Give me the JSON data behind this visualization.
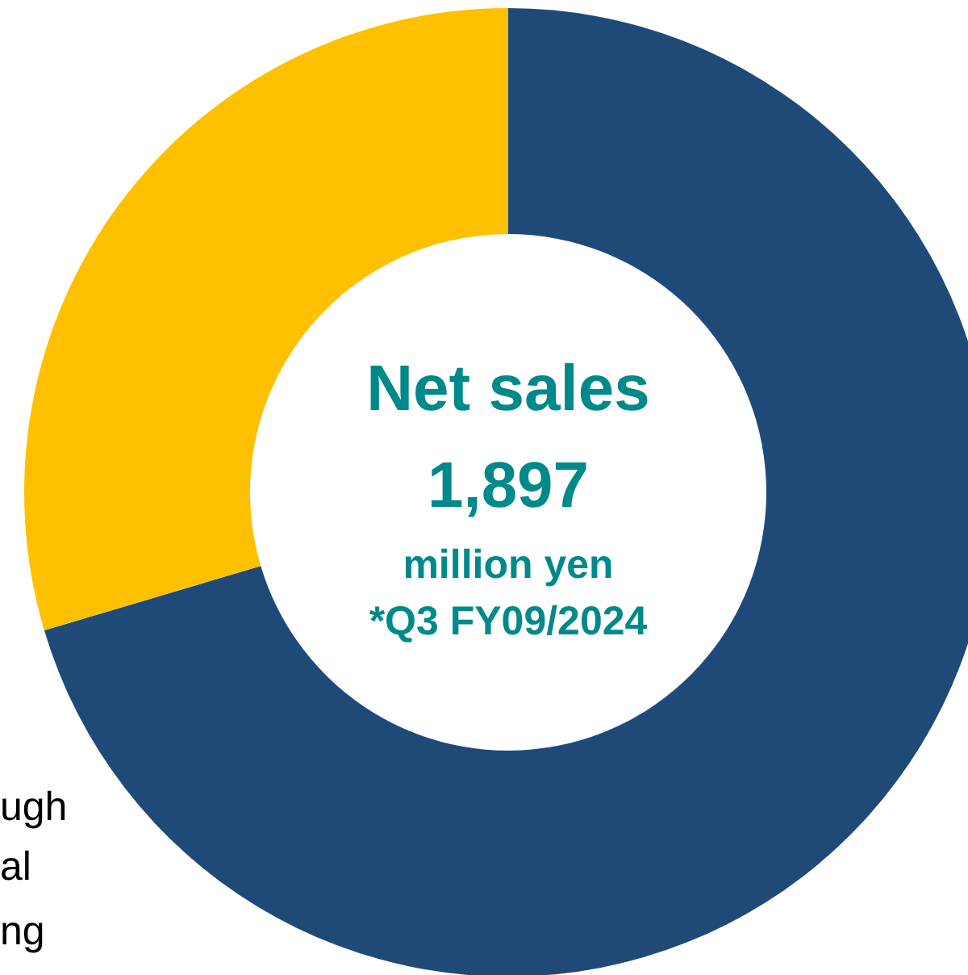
{
  "chart_data": {
    "type": "donut",
    "categories": [
      null,
      null
    ],
    "values": [
      70.4,
      29.6
    ],
    "colors": [
      "#1f4a78",
      "#ffc000"
    ],
    "annotations": [
      "Net sales",
      "1,897",
      "million yen",
      "*Q3 FY09/2024",
      "ugh",
      "al",
      "ng"
    ]
  }
}
